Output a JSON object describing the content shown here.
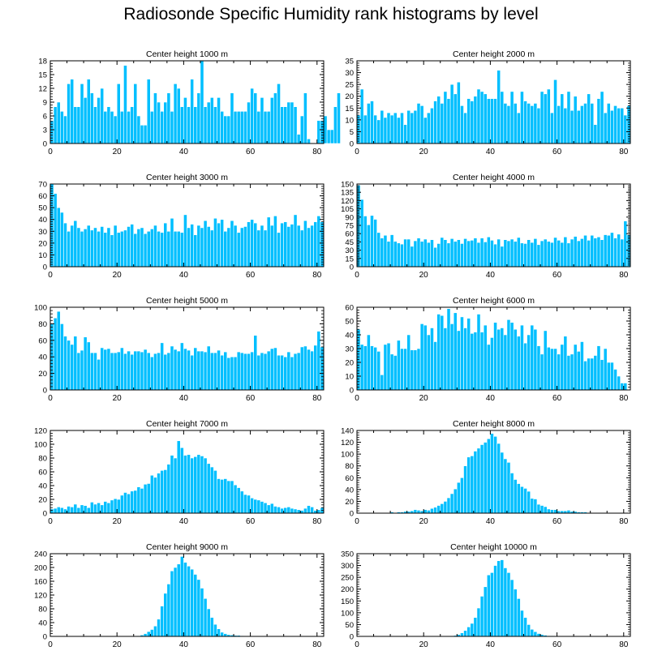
{
  "title": "Radiosonde Specific Humidity rank histograms by level",
  "style": {
    "bar_color": "#00BFFF",
    "bar_edge": "#ffffff",
    "axis_color": "#000000"
  },
  "chart_data": [
    {
      "type": "bar",
      "title": "Center height 1000 m",
      "xlim": [
        0,
        82
      ],
      "ylim": [
        0,
        18
      ],
      "xticks": [
        0,
        20,
        40,
        60,
        80
      ],
      "yticks": [
        0,
        3,
        6,
        9,
        12,
        15,
        18
      ],
      "values": [
        5,
        8,
        9,
        7,
        6,
        13,
        14,
        8,
        8,
        13,
        10,
        14,
        11,
        8,
        10,
        12,
        7,
        8,
        7,
        6,
        13,
        7,
        17,
        7,
        8,
        13,
        6,
        4,
        4,
        14,
        7,
        11,
        9,
        7,
        9,
        11,
        7,
        13,
        12,
        8,
        10,
        8,
        14,
        8,
        11,
        18,
        8,
        9,
        10,
        8,
        10,
        7,
        6,
        6,
        11,
        7,
        7,
        7,
        7,
        9,
        12,
        11,
        7,
        10,
        7,
        7,
        10,
        11,
        13,
        8,
        8,
        9,
        9,
        8,
        2,
        6,
        11,
        1,
        0,
        0,
        5,
        5,
        6,
        3,
        3,
        8,
        11
      ]
    },
    {
      "type": "bar",
      "title": "Center height 2000 m",
      "xlim": [
        0,
        82
      ],
      "ylim": [
        0,
        35
      ],
      "xticks": [
        0,
        20,
        40,
        60,
        80
      ],
      "yticks": [
        0,
        5,
        10,
        15,
        20,
        25,
        30,
        35
      ],
      "values": [
        12,
        23,
        12,
        17,
        18,
        12,
        10,
        14,
        11,
        13,
        12,
        13,
        11,
        13,
        8,
        14,
        13,
        14,
        17,
        16,
        11,
        13,
        15,
        18,
        20,
        17,
        22,
        19,
        25,
        21,
        26,
        16,
        13,
        19,
        18,
        20,
        23,
        22,
        21,
        19,
        19,
        19,
        31,
        22,
        17,
        16,
        22,
        17,
        13,
        22,
        18,
        17,
        16,
        17,
        15,
        22,
        21,
        23,
        13,
        27,
        16,
        21,
        15,
        22,
        14,
        20,
        14,
        16,
        17,
        21,
        17,
        8,
        19,
        22,
        13,
        17,
        14,
        16,
        15,
        15,
        12,
        16
      ]
    },
    {
      "type": "bar",
      "title": "Center height 3000 m",
      "xlim": [
        0,
        82
      ],
      "ylim": [
        0,
        70
      ],
      "xticks": [
        0,
        20,
        40,
        60,
        80
      ],
      "yticks": [
        0,
        10,
        20,
        30,
        40,
        50,
        60,
        70
      ],
      "values": [
        72,
        62,
        50,
        46,
        37,
        30,
        35,
        39,
        33,
        30,
        32,
        35,
        31,
        33,
        30,
        34,
        29,
        33,
        27,
        35,
        29,
        30,
        31,
        34,
        36,
        28,
        32,
        33,
        28,
        30,
        32,
        35,
        30,
        29,
        37,
        30,
        41,
        30,
        30,
        29,
        44,
        33,
        36,
        27,
        35,
        33,
        39,
        34,
        31,
        41,
        37,
        40,
        30,
        33,
        39,
        35,
        29,
        33,
        34,
        38,
        40,
        37,
        31,
        35,
        31,
        42,
        35,
        43,
        29,
        37,
        38,
        34,
        36,
        44,
        35,
        31,
        39,
        33,
        35,
        38,
        43,
        38
      ]
    },
    {
      "type": "bar",
      "title": "Center height 4000 m",
      "xlim": [
        0,
        82
      ],
      "ylim": [
        0,
        150
      ],
      "xticks": [
        0,
        20,
        40,
        60,
        80
      ],
      "yticks": [
        0,
        15,
        30,
        45,
        60,
        75,
        90,
        105,
        120,
        135,
        150
      ],
      "values": [
        148,
        122,
        92,
        76,
        93,
        86,
        62,
        52,
        57,
        46,
        58,
        46,
        43,
        41,
        50,
        50,
        37,
        47,
        52,
        46,
        50,
        44,
        49,
        35,
        42,
        53,
        49,
        43,
        51,
        46,
        49,
        42,
        51,
        47,
        48,
        52,
        44,
        52,
        45,
        54,
        48,
        41,
        50,
        37,
        49,
        47,
        50,
        46,
        53,
        43,
        42,
        49,
        44,
        51,
        40,
        47,
        50,
        46,
        44,
        53,
        48,
        44,
        54,
        43,
        50,
        55,
        47,
        51,
        57,
        48,
        57,
        52,
        54,
        49,
        58,
        57,
        62,
        52,
        59,
        50,
        83,
        58
      ]
    },
    {
      "type": "bar",
      "title": "Center height 5000 m",
      "xlim": [
        0,
        82
      ],
      "ylim": [
        0,
        100
      ],
      "xticks": [
        0,
        20,
        40,
        60,
        80
      ],
      "yticks": [
        0,
        20,
        40,
        60,
        80,
        100
      ],
      "values": [
        80,
        87,
        95,
        80,
        65,
        60,
        55,
        65,
        45,
        48,
        64,
        58,
        45,
        45,
        37,
        51,
        49,
        50,
        45,
        45,
        46,
        51,
        44,
        47,
        43,
        47,
        47,
        46,
        49,
        45,
        40,
        44,
        45,
        57,
        43,
        45,
        53,
        49,
        47,
        57,
        50,
        48,
        42,
        51,
        47,
        47,
        46,
        53,
        45,
        45,
        48,
        42,
        46,
        39,
        40,
        40,
        46,
        45,
        44,
        44,
        46,
        66,
        42,
        45,
        44,
        47,
        50,
        51,
        42,
        42,
        40,
        46,
        40,
        44,
        45,
        52,
        53,
        49,
        47,
        54,
        71,
        52
      ]
    },
    {
      "type": "bar",
      "title": "Center height 6000 m",
      "xlim": [
        0,
        82
      ],
      "ylim": [
        0,
        60
      ],
      "xticks": [
        0,
        20,
        40,
        60,
        80
      ],
      "yticks": [
        0,
        10,
        20,
        30,
        40,
        50,
        60
      ],
      "values": [
        44,
        33,
        32,
        40,
        32,
        31,
        28,
        11,
        33,
        34,
        26,
        25,
        36,
        30,
        30,
        40,
        29,
        29,
        30,
        48,
        47,
        40,
        45,
        35,
        55,
        54,
        45,
        59,
        48,
        56,
        43,
        53,
        45,
        52,
        41,
        42,
        55,
        42,
        47,
        33,
        38,
        49,
        44,
        45,
        40,
        51,
        49,
        44,
        39,
        47,
        34,
        40,
        47,
        44,
        32,
        26,
        43,
        31,
        30,
        30,
        26,
        33,
        39,
        25,
        26,
        33,
        28,
        35,
        21,
        23,
        23,
        25,
        32,
        22,
        30,
        20,
        20,
        15,
        10,
        5,
        5
      ]
    },
    {
      "type": "bar",
      "title": "Center height 7000 m",
      "xlim": [
        0,
        82
      ],
      "ylim": [
        0,
        120
      ],
      "xticks": [
        0,
        20,
        40,
        60,
        80
      ],
      "yticks": [
        0,
        20,
        40,
        60,
        80,
        100,
        120
      ],
      "values": [
        6,
        7,
        9,
        8,
        6,
        10,
        9,
        13,
        8,
        12,
        11,
        8,
        16,
        13,
        15,
        12,
        17,
        15,
        19,
        21,
        20,
        26,
        30,
        28,
        32,
        33,
        38,
        36,
        42,
        43,
        55,
        52,
        58,
        62,
        63,
        71,
        84,
        80,
        105,
        95,
        84,
        85,
        80,
        82,
        85,
        83,
        80,
        72,
        67,
        62,
        50,
        49,
        50,
        47,
        47,
        41,
        37,
        32,
        27,
        26,
        22,
        20,
        19,
        17,
        15,
        12,
        14,
        10,
        9,
        7,
        8,
        9,
        7,
        6,
        5,
        4,
        7,
        11,
        9,
        4,
        5,
        8
      ]
    },
    {
      "type": "bar",
      "title": "Center height 8000 m",
      "xlim": [
        0,
        82
      ],
      "ylim": [
        0,
        140
      ],
      "xticks": [
        0,
        20,
        40,
        60,
        80
      ],
      "yticks": [
        0,
        20,
        40,
        60,
        80,
        100,
        120,
        140
      ],
      "values": [
        0,
        0,
        0,
        0,
        0,
        0,
        0,
        0,
        0,
        1,
        2,
        1,
        2,
        2,
        3,
        3,
        4,
        6,
        5,
        4,
        6,
        5,
        8,
        10,
        13,
        16,
        20,
        26,
        33,
        41,
        52,
        60,
        80,
        95,
        97,
        105,
        110,
        116,
        120,
        126,
        135,
        130,
        118,
        103,
        92,
        86,
        68,
        57,
        50,
        45,
        42,
        37,
        25,
        24,
        15,
        13,
        11,
        7,
        6,
        6,
        4,
        4,
        4,
        5,
        3,
        3,
        2,
        2,
        2,
        1,
        1,
        1,
        1,
        1,
        0,
        0,
        0,
        0,
        0,
        0,
        0,
        0
      ]
    },
    {
      "type": "bar",
      "title": "Center height 9000 m",
      "xlim": [
        0,
        82
      ],
      "ylim": [
        0,
        240
      ],
      "xticks": [
        0,
        20,
        40,
        60,
        80
      ],
      "yticks": [
        0,
        40,
        80,
        120,
        160,
        200,
        240
      ],
      "values": [
        0,
        0,
        0,
        0,
        0,
        0,
        0,
        0,
        0,
        0,
        0,
        0,
        0,
        0,
        0,
        0,
        0,
        0,
        0,
        0,
        0,
        0,
        0,
        0,
        0,
        1,
        2,
        4,
        8,
        14,
        20,
        30,
        50,
        88,
        125,
        152,
        190,
        200,
        210,
        232,
        215,
        204,
        195,
        180,
        165,
        140,
        110,
        80,
        55,
        35,
        22,
        12,
        8,
        5,
        4,
        3,
        3,
        2,
        1,
        1,
        1,
        0,
        0,
        0,
        0,
        0,
        0,
        0,
        0,
        0,
        0,
        0,
        0,
        0,
        0,
        0,
        0,
        0,
        0,
        0,
        0,
        0
      ]
    },
    {
      "type": "bar",
      "title": "Center height 10000 m",
      "xlim": [
        0,
        82
      ],
      "ylim": [
        0,
        350
      ],
      "xticks": [
        0,
        20,
        40,
        60,
        80
      ],
      "yticks": [
        0,
        50,
        100,
        150,
        200,
        250,
        300,
        350
      ],
      "values": [
        0,
        0,
        0,
        0,
        0,
        0,
        0,
        0,
        0,
        0,
        0,
        0,
        0,
        0,
        0,
        0,
        0,
        0,
        0,
        0,
        0,
        0,
        0,
        0,
        0,
        0,
        0,
        1,
        2,
        4,
        8,
        15,
        25,
        40,
        55,
        80,
        120,
        170,
        210,
        260,
        270,
        300,
        320,
        324,
        290,
        270,
        240,
        200,
        160,
        110,
        80,
        50,
        30,
        20,
        12,
        8,
        5,
        3,
        2,
        1,
        0,
        0,
        0,
        0,
        0,
        0,
        0,
        0,
        0,
        0,
        0,
        0,
        0,
        0,
        0,
        0,
        0,
        0,
        0,
        0,
        0,
        0
      ]
    }
  ]
}
